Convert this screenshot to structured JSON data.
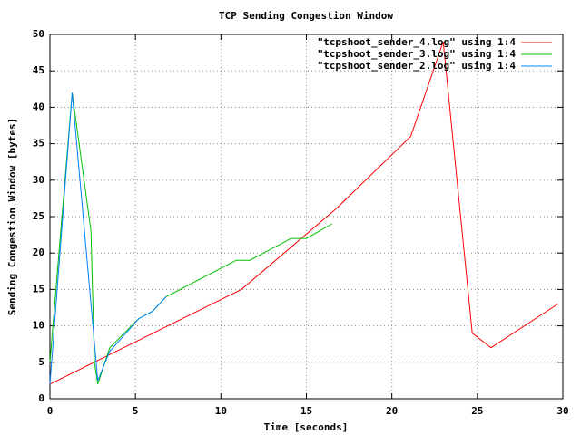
{
  "chart_data": {
    "type": "line",
    "title": "TCP Sending Congestion Window",
    "x_label": "Time [seconds]",
    "y_label": "Sending Congestion Window [bytes]",
    "xlim": [
      0,
      30
    ],
    "ylim": [
      0,
      50
    ],
    "xticks": [
      0,
      5,
      10,
      15,
      20,
      25,
      30
    ],
    "yticks": [
      0,
      5,
      10,
      15,
      20,
      25,
      30,
      35,
      40,
      45,
      50
    ],
    "grid": true,
    "legend": "top-right",
    "series": [
      {
        "name": "\"tcpshoot_sender_4.log\" using 1:4",
        "color": "#ff0000",
        "x": [
          0,
          11.2,
          16.7,
          21.1,
          23.0,
          24.7,
          25.8,
          29.7
        ],
        "values": [
          2,
          15,
          26,
          36,
          49,
          9,
          7,
          13
        ]
      },
      {
        "name": "\"tcpshoot_sender_3.log\" using 1:4",
        "color": "#00c000",
        "x": [
          0,
          1.3,
          2.4,
          2.6,
          2.8,
          3.5,
          5.2,
          6.0,
          6.8,
          10.9,
          11.7,
          14.1,
          15.0,
          16.5
        ],
        "values": [
          5,
          42,
          23,
          5,
          2,
          7,
          11,
          12,
          14,
          19,
          19,
          22,
          22,
          24
        ]
      },
      {
        "name": "\"tcpshoot_sender_2.log\" using 1:4",
        "color": "#0080ff",
        "x": [
          0,
          1.3,
          2.7,
          2.8,
          3.5,
          5.2,
          6.0,
          6.8
        ],
        "values": [
          2,
          42,
          5,
          2.5,
          6.5,
          11,
          12,
          14
        ]
      }
    ]
  }
}
